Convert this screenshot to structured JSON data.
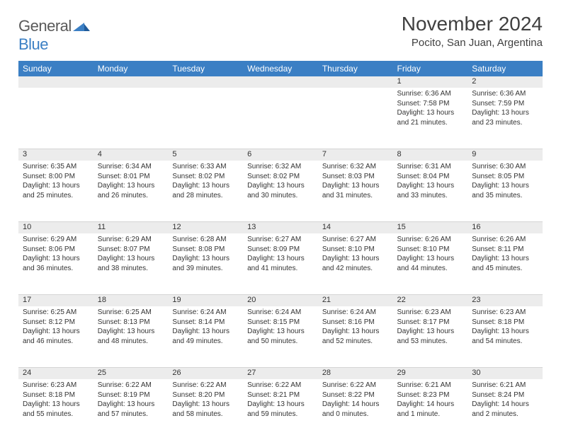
{
  "logo": {
    "text1": "General",
    "text2": "Blue"
  },
  "title": "November 2024",
  "location": "Pocito, San Juan, Argentina",
  "header_color": "#3b7fc4",
  "daynum_bg": "#ececec",
  "text_color": "#333333",
  "days": [
    "Sunday",
    "Monday",
    "Tuesday",
    "Wednesday",
    "Thursday",
    "Friday",
    "Saturday"
  ],
  "weeks": [
    [
      null,
      null,
      null,
      null,
      null,
      {
        "n": "1",
        "sunrise": "6:36 AM",
        "sunset": "7:58 PM",
        "daylight": "13 hours and 21 minutes."
      },
      {
        "n": "2",
        "sunrise": "6:36 AM",
        "sunset": "7:59 PM",
        "daylight": "13 hours and 23 minutes."
      }
    ],
    [
      {
        "n": "3",
        "sunrise": "6:35 AM",
        "sunset": "8:00 PM",
        "daylight": "13 hours and 25 minutes."
      },
      {
        "n": "4",
        "sunrise": "6:34 AM",
        "sunset": "8:01 PM",
        "daylight": "13 hours and 26 minutes."
      },
      {
        "n": "5",
        "sunrise": "6:33 AM",
        "sunset": "8:02 PM",
        "daylight": "13 hours and 28 minutes."
      },
      {
        "n": "6",
        "sunrise": "6:32 AM",
        "sunset": "8:02 PM",
        "daylight": "13 hours and 30 minutes."
      },
      {
        "n": "7",
        "sunrise": "6:32 AM",
        "sunset": "8:03 PM",
        "daylight": "13 hours and 31 minutes."
      },
      {
        "n": "8",
        "sunrise": "6:31 AM",
        "sunset": "8:04 PM",
        "daylight": "13 hours and 33 minutes."
      },
      {
        "n": "9",
        "sunrise": "6:30 AM",
        "sunset": "8:05 PM",
        "daylight": "13 hours and 35 minutes."
      }
    ],
    [
      {
        "n": "10",
        "sunrise": "6:29 AM",
        "sunset": "8:06 PM",
        "daylight": "13 hours and 36 minutes."
      },
      {
        "n": "11",
        "sunrise": "6:29 AM",
        "sunset": "8:07 PM",
        "daylight": "13 hours and 38 minutes."
      },
      {
        "n": "12",
        "sunrise": "6:28 AM",
        "sunset": "8:08 PM",
        "daylight": "13 hours and 39 minutes."
      },
      {
        "n": "13",
        "sunrise": "6:27 AM",
        "sunset": "8:09 PM",
        "daylight": "13 hours and 41 minutes."
      },
      {
        "n": "14",
        "sunrise": "6:27 AM",
        "sunset": "8:10 PM",
        "daylight": "13 hours and 42 minutes."
      },
      {
        "n": "15",
        "sunrise": "6:26 AM",
        "sunset": "8:10 PM",
        "daylight": "13 hours and 44 minutes."
      },
      {
        "n": "16",
        "sunrise": "6:26 AM",
        "sunset": "8:11 PM",
        "daylight": "13 hours and 45 minutes."
      }
    ],
    [
      {
        "n": "17",
        "sunrise": "6:25 AM",
        "sunset": "8:12 PM",
        "daylight": "13 hours and 46 minutes."
      },
      {
        "n": "18",
        "sunrise": "6:25 AM",
        "sunset": "8:13 PM",
        "daylight": "13 hours and 48 minutes."
      },
      {
        "n": "19",
        "sunrise": "6:24 AM",
        "sunset": "8:14 PM",
        "daylight": "13 hours and 49 minutes."
      },
      {
        "n": "20",
        "sunrise": "6:24 AM",
        "sunset": "8:15 PM",
        "daylight": "13 hours and 50 minutes."
      },
      {
        "n": "21",
        "sunrise": "6:24 AM",
        "sunset": "8:16 PM",
        "daylight": "13 hours and 52 minutes."
      },
      {
        "n": "22",
        "sunrise": "6:23 AM",
        "sunset": "8:17 PM",
        "daylight": "13 hours and 53 minutes."
      },
      {
        "n": "23",
        "sunrise": "6:23 AM",
        "sunset": "8:18 PM",
        "daylight": "13 hours and 54 minutes."
      }
    ],
    [
      {
        "n": "24",
        "sunrise": "6:23 AM",
        "sunset": "8:18 PM",
        "daylight": "13 hours and 55 minutes."
      },
      {
        "n": "25",
        "sunrise": "6:22 AM",
        "sunset": "8:19 PM",
        "daylight": "13 hours and 57 minutes."
      },
      {
        "n": "26",
        "sunrise": "6:22 AM",
        "sunset": "8:20 PM",
        "daylight": "13 hours and 58 minutes."
      },
      {
        "n": "27",
        "sunrise": "6:22 AM",
        "sunset": "8:21 PM",
        "daylight": "13 hours and 59 minutes."
      },
      {
        "n": "28",
        "sunrise": "6:22 AM",
        "sunset": "8:22 PM",
        "daylight": "14 hours and 0 minutes."
      },
      {
        "n": "29",
        "sunrise": "6:21 AM",
        "sunset": "8:23 PM",
        "daylight": "14 hours and 1 minute."
      },
      {
        "n": "30",
        "sunrise": "6:21 AM",
        "sunset": "8:24 PM",
        "daylight": "14 hours and 2 minutes."
      }
    ]
  ],
  "labels": {
    "sunrise": "Sunrise: ",
    "sunset": "Sunset: ",
    "daylight": "Daylight: "
  }
}
